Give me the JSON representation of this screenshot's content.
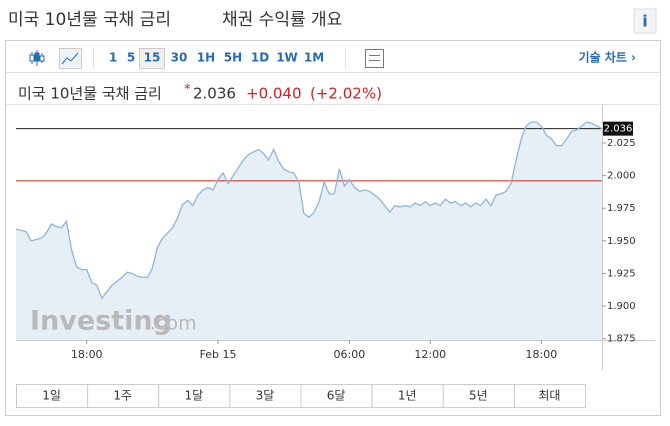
{
  "header": {
    "title": "미국 10년물 국채 금리",
    "subtitle": "채권 수익률 개요",
    "info": "i"
  },
  "toolbar": {
    "intervals": [
      "1",
      "5",
      "15",
      "30",
      "1H",
      "5H",
      "1D",
      "1W",
      "1M"
    ],
    "selected": "15",
    "tech_chart": "기술 차트 ›"
  },
  "quote": {
    "name": "미국 10년물 국채 금리",
    "last": "2.036",
    "change": "+0.040",
    "change_pct": "(+2.02%)"
  },
  "watermark": {
    "brand": "Investing",
    "domain": ".com"
  },
  "chart_data": {
    "type": "line",
    "color": "#8fb5d9",
    "fill": "#e6eef6",
    "values": [
      1.959,
      1.958,
      1.957,
      1.95,
      1.951,
      1.952,
      1.956,
      1.963,
      1.961,
      1.96,
      1.965,
      1.943,
      1.93,
      1.928,
      1.928,
      1.918,
      1.916,
      1.906,
      1.911,
      1.916,
      1.919,
      1.922,
      1.926,
      1.925,
      1.923,
      1.922,
      1.922,
      1.929,
      1.945,
      1.952,
      1.956,
      1.96,
      1.968,
      1.978,
      1.981,
      1.977,
      1.985,
      1.989,
      1.991,
      1.989,
      1.997,
      2.002,
      1.994,
      2.0,
      2.006,
      2.012,
      2.016,
      2.018,
      2.02,
      2.017,
      2.012,
      2.02,
      2.011,
      2.005,
      2.003,
      2.002,
      1.995,
      1.971,
      1.968,
      1.972,
      1.98,
      1.995,
      1.986,
      1.986,
      2.005,
      1.992,
      1.997,
      1.991,
      1.988,
      1.989,
      1.988,
      1.985,
      1.982,
      1.977,
      1.972,
      1.977,
      1.976,
      1.977,
      1.976,
      1.979,
      1.977,
      1.98,
      1.977,
      1.979,
      1.977,
      1.982,
      1.979,
      1.98,
      1.977,
      1.979,
      1.976,
      1.979,
      1.977,
      1.982,
      1.977,
      1.985,
      1.986,
      1.988,
      1.994,
      2.012,
      2.028,
      2.038,
      2.041,
      2.041,
      2.038,
      2.031,
      2.028,
      2.023,
      2.023,
      2.028,
      2.034,
      2.035,
      2.038,
      2.041,
      2.04,
      2.038,
      2.036
    ],
    "prev_close": 1.996,
    "prev_close_color": "#cc2222",
    "last_line_color": "#222222",
    "ylim": [
      1.874,
      2.048
    ],
    "yticks": [
      1.875,
      {
        "value": 1.9,
        "label": "1.900"
      },
      1.925,
      {
        "value": 1.95,
        "label": "1.950"
      },
      1.975,
      {
        "value": 2,
        "label": "2.000"
      },
      2.025
    ],
    "xlim": [
      0,
      116
    ],
    "xticks": [
      {
        "value": 14,
        "label": "18:00"
      },
      {
        "value": 40,
        "label": "Feb 15"
      },
      {
        "value": 66,
        "label": "06:00"
      },
      {
        "value": 82,
        "label": "12:00"
      },
      {
        "value": 104,
        "label": "18:00"
      }
    ],
    "grid": false
  },
  "ranges": [
    "1일",
    "1주",
    "1달",
    "3달",
    "6달",
    "1년",
    "5년",
    "최대"
  ]
}
